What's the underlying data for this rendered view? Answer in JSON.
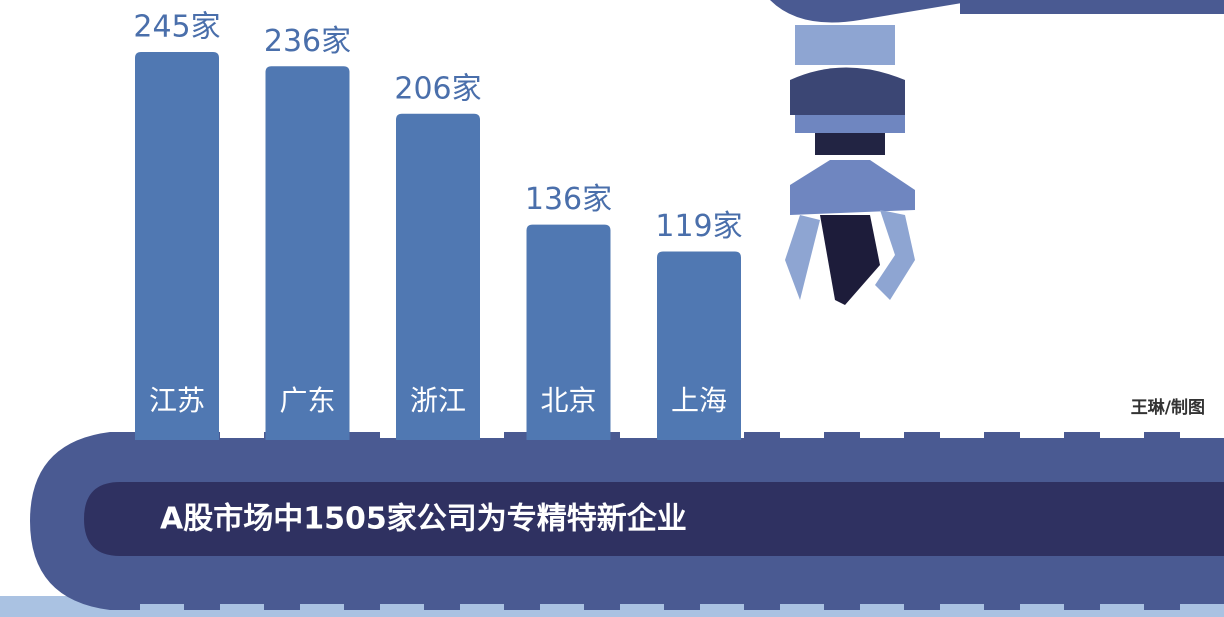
{
  "chart_data": {
    "type": "bar",
    "title": "A股市场中1505家公司为专精特新企业",
    "categories": [
      "江苏",
      "广东",
      "浙江",
      "北京",
      "上海"
    ],
    "values": [
      245,
      236,
      206,
      136,
      119
    ],
    "value_labels": [
      "245家",
      "236家",
      "206家",
      "136家",
      "119家"
    ],
    "color": "#5078b2",
    "credit": "王琳/制图"
  }
}
